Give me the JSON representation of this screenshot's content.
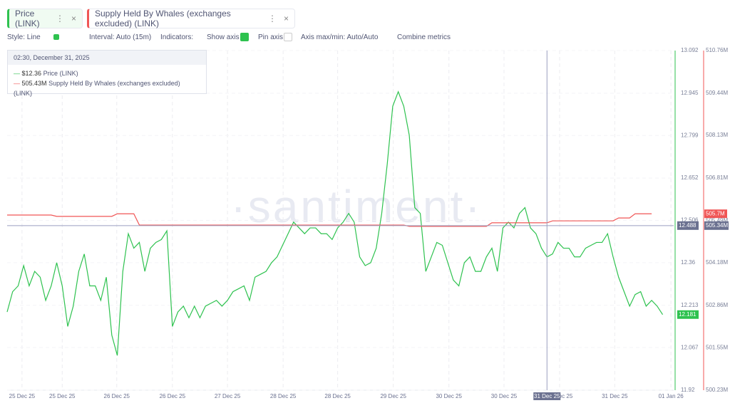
{
  "tabs": [
    {
      "close": "×"
    },
    {
      "close": "×"
    }
  ],
  "toolbar": {
    "style": "Style: Line",
    "interval": "Interval: Auto (15m)",
    "indicators": "Indicators:",
    "show_axis": "Show axis",
    "pin_axis": "Pin axis",
    "axis_minmax": "Axis max/min: Auto/Auto",
    "combine": "Combine metrics"
  },
  "chart_data": {
    "type": "line",
    "watermark": "·santiment·",
    "xlim": [
      0,
      121
    ],
    "xticks": [
      {
        "value": 2.7,
        "label": "25 Dec 25"
      },
      {
        "value": 10.0,
        "label": "25 Dec 25"
      },
      {
        "value": 19.9,
        "label": "26 Dec 25"
      },
      {
        "value": 30.0,
        "label": "26 Dec 25"
      },
      {
        "value": 40.0,
        "label": "27 Dec 25"
      },
      {
        "value": 50.1,
        "label": "28 Dec 25"
      },
      {
        "value": 60.0,
        "label": "28 Dec 25"
      },
      {
        "value": 70.1,
        "label": "29 Dec 25"
      },
      {
        "value": 80.2,
        "label": "30 Dec 25"
      },
      {
        "value": 90.2,
        "label": "30 Dec 25"
      },
      {
        "value": 100.3,
        "label": "31 Dec 25"
      },
      {
        "value": 110.3,
        "label": "31 Dec 25"
      },
      {
        "value": 120.5,
        "label": "01 Jan 26"
      }
    ],
    "ylim": [
      11.92,
      13.092
    ],
    "yticks": [
      11.92,
      12.067,
      12.213,
      12.36,
      12.506,
      12.652,
      12.799,
      12.945,
      13.092
    ],
    "y2lim": [
      500230000,
      510760000
    ],
    "y2ticks": [
      {
        "value": 500230000,
        "label": "500.23M"
      },
      {
        "value": 501550000,
        "label": "501.55M"
      },
      {
        "value": 502860000,
        "label": "502.86M"
      },
      {
        "value": 504180000,
        "label": "504.18M"
      },
      {
        "value": 505490000,
        "label": "505.49M"
      },
      {
        "value": 506810000,
        "label": "506.81M"
      },
      {
        "value": 508130000,
        "label": "508.13M"
      },
      {
        "value": 509440000,
        "label": "509.44M"
      },
      {
        "value": 510760000,
        "label": "510.76M"
      }
    ],
    "series": [
      {
        "name": "Price (LINK)",
        "color": "#2ec24f",
        "last_label": "12.181",
        "values": [
          12.19,
          12.26,
          12.28,
          12.35,
          12.28,
          12.33,
          12.31,
          12.23,
          12.28,
          12.36,
          12.28,
          12.14,
          12.21,
          12.33,
          12.39,
          12.28,
          12.28,
          12.23,
          12.31,
          12.11,
          12.04,
          12.33,
          12.46,
          12.41,
          12.43,
          12.33,
          12.41,
          12.43,
          12.44,
          12.47,
          12.14,
          12.19,
          12.21,
          12.17,
          12.21,
          12.17,
          12.21,
          12.22,
          12.23,
          12.21,
          12.23,
          12.26,
          12.27,
          12.28,
          12.23,
          12.31,
          12.32,
          12.33,
          12.36,
          12.38,
          12.42,
          12.46,
          12.5,
          12.48,
          12.46,
          12.48,
          12.48,
          12.46,
          12.46,
          12.44,
          12.48,
          12.5,
          12.53,
          12.5,
          12.38,
          12.35,
          12.36,
          12.41,
          12.53,
          12.7,
          12.9,
          12.95,
          12.9,
          12.8,
          12.55,
          12.53,
          12.33,
          12.38,
          12.43,
          12.42,
          12.36,
          12.3,
          12.28,
          12.36,
          12.38,
          12.33,
          12.33,
          12.38,
          12.41,
          12.33,
          12.48,
          12.5,
          12.48,
          12.53,
          12.55,
          12.48,
          12.46,
          12.41,
          12.38,
          12.39,
          12.43,
          12.41,
          12.41,
          12.38,
          12.38,
          12.41,
          12.42,
          12.43,
          12.43,
          12.46,
          12.38,
          12.31,
          12.26,
          12.21,
          12.25,
          12.26,
          12.21,
          12.23,
          12.21,
          12.181
        ]
      },
      {
        "name": "Supply Held By Whales (exchanges excluded) (LINK)",
        "color": "#f05656",
        "axis": "y2",
        "last_label": "505.7M",
        "values": [
          505660000,
          505660000,
          505660000,
          505660000,
          505660000,
          505660000,
          505660000,
          505660000,
          505660000,
          505620000,
          505620000,
          505620000,
          505620000,
          505620000,
          505620000,
          505620000,
          505620000,
          505620000,
          505620000,
          505620000,
          505700000,
          505700000,
          505700000,
          505700000,
          505350000,
          505350000,
          505350000,
          505350000,
          505350000,
          505350000,
          505350000,
          505350000,
          505350000,
          505350000,
          505350000,
          505350000,
          505350000,
          505350000,
          505350000,
          505350000,
          505350000,
          505350000,
          505350000,
          505350000,
          505350000,
          505350000,
          505350000,
          505350000,
          505350000,
          505350000,
          505350000,
          505350000,
          505350000,
          505350000,
          505350000,
          505350000,
          505350000,
          505350000,
          505350000,
          505350000,
          505350000,
          505350000,
          505350000,
          505350000,
          505350000,
          505350000,
          505350000,
          505350000,
          505350000,
          505350000,
          505350000,
          505350000,
          505350000,
          505310000,
          505310000,
          505310000,
          505310000,
          505310000,
          505310000,
          505310000,
          505310000,
          505310000,
          505310000,
          505310000,
          505310000,
          505310000,
          505310000,
          505310000,
          505420000,
          505420000,
          505420000,
          505420000,
          505420000,
          505420000,
          505420000,
          505420000,
          505420000,
          505420000,
          505420000,
          505480000,
          505480000,
          505480000,
          505480000,
          505480000,
          505480000,
          505480000,
          505480000,
          505480000,
          505480000,
          505480000,
          505480000,
          505570000,
          505570000,
          505570000,
          505700000,
          505700000,
          505700000,
          505700000,
          null,
          null
        ]
      }
    ],
    "crosshair": {
      "x": 98.0,
      "x_label": "31 Dec 25",
      "y": 12.488,
      "y2": {
        "value": 505340000,
        "label": "505.34M"
      }
    },
    "tooltip": {
      "title": "02:30, December 31, 2025",
      "values": [
        {
          "value": 12.36,
          "label": "$12.36"
        },
        {
          "value": 505430000,
          "label": "505.43M"
        }
      ]
    }
  }
}
